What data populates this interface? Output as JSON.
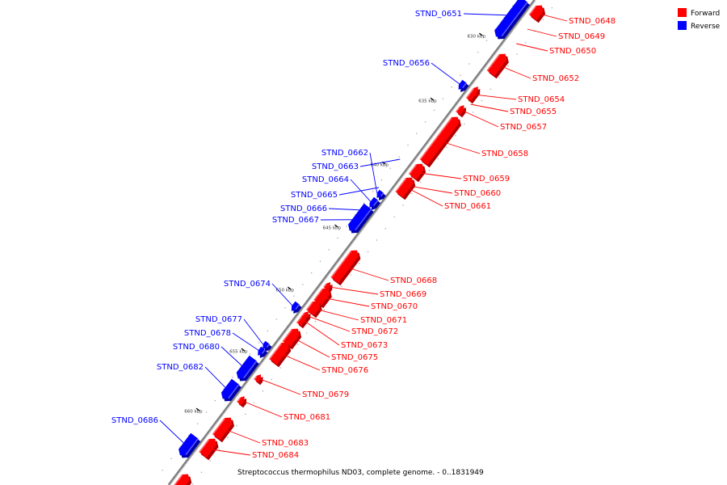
{
  "caption": "Streptococcus thermophilus ND03, complete genome. - 0..1831949",
  "legend": [
    {
      "label": "Forward",
      "color": "#ff0000"
    },
    {
      "label": "Reverse",
      "color": "#0000ff"
    }
  ],
  "colors": {
    "forward": "#ff0000",
    "forward_dark": "#b00000",
    "forward_light": "#ff6a6a",
    "reverse": "#0000ff",
    "reverse_dark": "#0000a8",
    "reverse_light": "#5a5aff",
    "backbone": "#7f7f7f"
  },
  "ticks": [
    "630 kbp",
    "635 kbp",
    "640 kbp",
    "645 kbp",
    "650 kbp",
    "655 kbp",
    "660 kbp"
  ],
  "genes": [
    {
      "name": "STND_0648",
      "strand": "forward"
    },
    {
      "name": "STND_0649",
      "strand": "forward"
    },
    {
      "name": "STND_0650",
      "strand": "forward"
    },
    {
      "name": "STND_0651",
      "strand": "reverse"
    },
    {
      "name": "STND_0652",
      "strand": "forward"
    },
    {
      "name": "STND_0654",
      "strand": "forward"
    },
    {
      "name": "STND_0655",
      "strand": "forward"
    },
    {
      "name": "STND_0656",
      "strand": "reverse"
    },
    {
      "name": "STND_0657",
      "strand": "forward"
    },
    {
      "name": "STND_0658",
      "strand": "forward"
    },
    {
      "name": "STND_0659",
      "strand": "forward"
    },
    {
      "name": "STND_0660",
      "strand": "forward"
    },
    {
      "name": "STND_0661",
      "strand": "forward"
    },
    {
      "name": "STND_0662",
      "strand": "reverse"
    },
    {
      "name": "STND_0663",
      "strand": "reverse"
    },
    {
      "name": "STND_0664",
      "strand": "reverse"
    },
    {
      "name": "STND_0665",
      "strand": "reverse"
    },
    {
      "name": "STND_0666",
      "strand": "reverse"
    },
    {
      "name": "STND_0667",
      "strand": "reverse"
    },
    {
      "name": "STND_0668",
      "strand": "forward"
    },
    {
      "name": "STND_0669",
      "strand": "forward"
    },
    {
      "name": "STND_0670",
      "strand": "forward"
    },
    {
      "name": "STND_0671",
      "strand": "forward"
    },
    {
      "name": "STND_0672",
      "strand": "forward"
    },
    {
      "name": "STND_0673",
      "strand": "forward"
    },
    {
      "name": "STND_0674",
      "strand": "reverse"
    },
    {
      "name": "STND_0675",
      "strand": "forward"
    },
    {
      "name": "STND_0676",
      "strand": "forward"
    },
    {
      "name": "STND_0677",
      "strand": "reverse"
    },
    {
      "name": "STND_0678",
      "strand": "reverse"
    },
    {
      "name": "STND_0679",
      "strand": "forward"
    },
    {
      "name": "STND_0680",
      "strand": "reverse"
    },
    {
      "name": "STND_0681",
      "strand": "forward"
    },
    {
      "name": "STND_0682",
      "strand": "reverse"
    },
    {
      "name": "STND_0683",
      "strand": "forward"
    },
    {
      "name": "STND_0684",
      "strand": "forward"
    },
    {
      "name": "STND_0686",
      "strand": "reverse"
    }
  ]
}
